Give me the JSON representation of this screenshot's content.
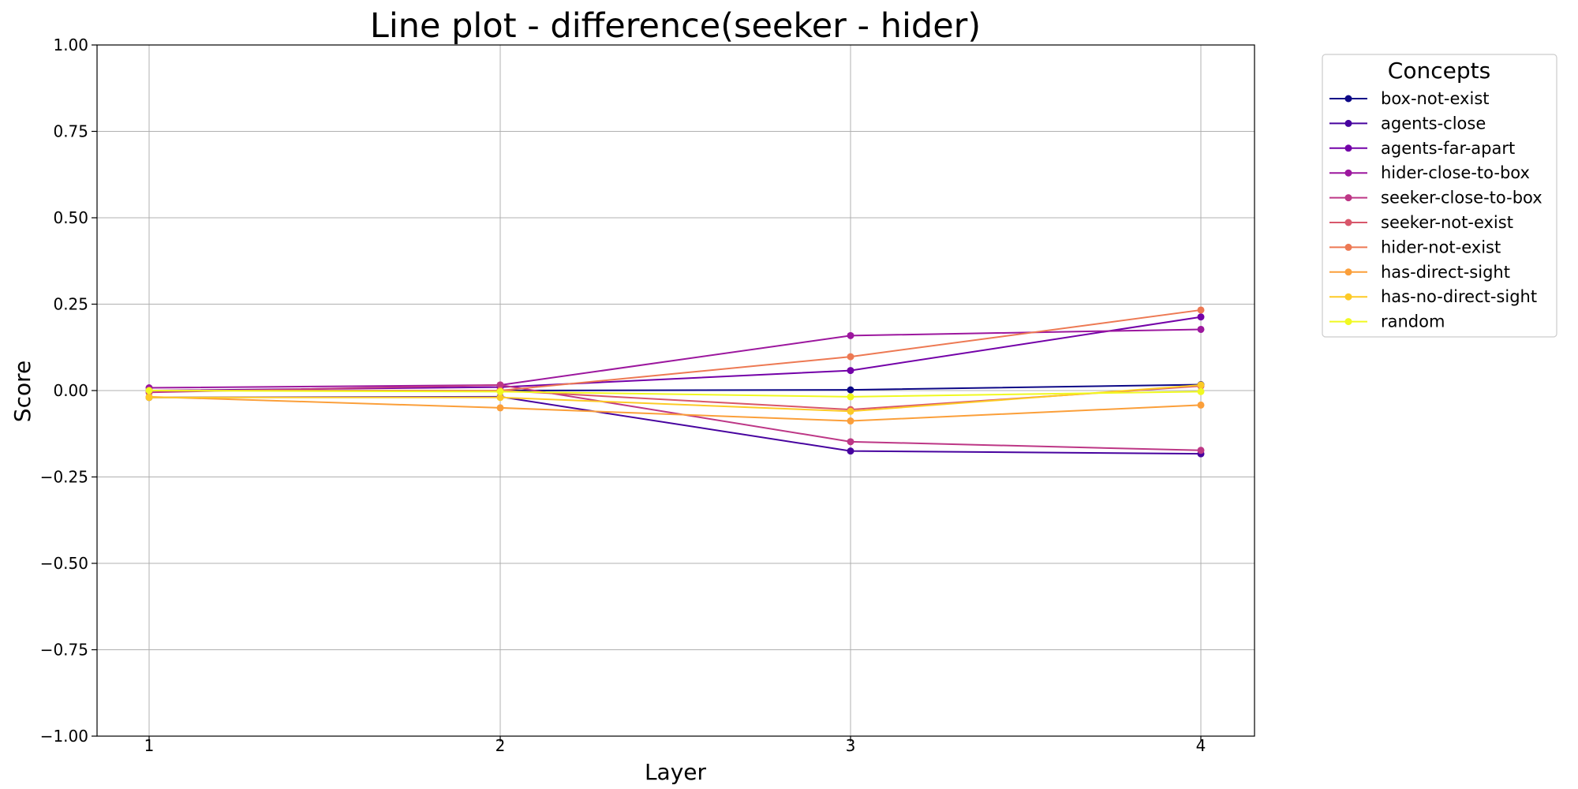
{
  "chart_data": {
    "type": "line",
    "title": "Line plot - difference(seeker - hider)",
    "xlabel": "Layer",
    "ylabel": "Score",
    "x": [
      1,
      2,
      3,
      4
    ],
    "x_tick_labels": [
      "1",
      "2",
      "3",
      "4"
    ],
    "ylim": [
      -1.0,
      1.0
    ],
    "y_ticks": [
      -1.0,
      -0.75,
      -0.5,
      -0.25,
      0.0,
      0.25,
      0.5,
      0.75,
      1.0
    ],
    "y_tick_labels": [
      "−1.00",
      "−0.75",
      "−0.50",
      "−0.25",
      "0.00",
      "0.25",
      "0.50",
      "0.75",
      "1.00"
    ],
    "grid": true,
    "legend": {
      "title": "Concepts",
      "placement": "outside-right"
    },
    "series": [
      {
        "name": "box-not-exist",
        "color": "#0d0887",
        "values": [
          0.0,
          0.0,
          0.002,
          0.017
        ]
      },
      {
        "name": "agents-close",
        "color": "#47039f",
        "values": [
          -0.02,
          -0.018,
          -0.175,
          -0.183
        ]
      },
      {
        "name": "agents-far-apart",
        "color": "#7301a8",
        "values": [
          0.0,
          0.01,
          0.058,
          0.213
        ]
      },
      {
        "name": "hider-close-to-box",
        "color": "#9c179e",
        "values": [
          0.008,
          0.016,
          0.159,
          0.177
        ]
      },
      {
        "name": "seeker-close-to-box",
        "color": "#bd3786",
        "values": [
          -0.005,
          0.016,
          -0.148,
          -0.173
        ]
      },
      {
        "name": "seeker-not-exist",
        "color": "#d8576b",
        "values": [
          0.0,
          0.0,
          -0.055,
          0.013
        ]
      },
      {
        "name": "hider-not-exist",
        "color": "#ed7953",
        "values": [
          0.0,
          0.0,
          0.098,
          0.233
        ]
      },
      {
        "name": "has-direct-sight",
        "color": "#fb9f3a",
        "values": [
          -0.018,
          -0.05,
          -0.088,
          -0.042
        ]
      },
      {
        "name": "has-no-direct-sight",
        "color": "#fdca26",
        "values": [
          -0.02,
          -0.02,
          -0.06,
          0.016
        ]
      },
      {
        "name": "random",
        "color": "#f0f921",
        "values": [
          0.0,
          -0.003,
          -0.018,
          -0.003
        ]
      }
    ]
  }
}
